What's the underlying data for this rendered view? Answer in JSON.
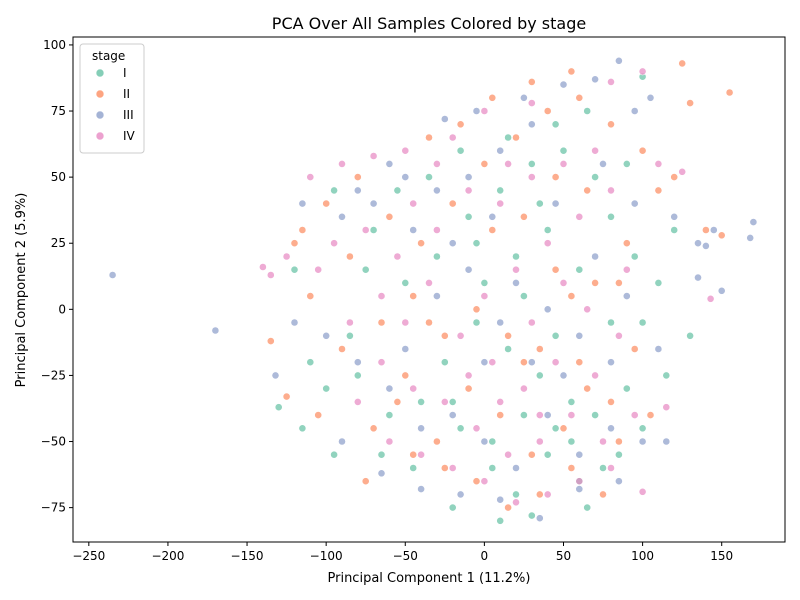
{
  "chart_data": {
    "type": "scatter",
    "title": "PCA Over All Samples Colored by stage",
    "xlabel": "Principal Component 1 (11.2%)",
    "ylabel": "Principal Component 2 (5.9%)",
    "xlim": [
      -260,
      190
    ],
    "ylim": [
      -88,
      103
    ],
    "xticks": [
      -250,
      -200,
      -150,
      -100,
      -50,
      0,
      50,
      100,
      150
    ],
    "yticks": [
      -75,
      -50,
      -25,
      0,
      25,
      50,
      75,
      100
    ],
    "grid": false,
    "legend": {
      "title": "stage",
      "placement": "top-left"
    },
    "series": [
      {
        "name": "I",
        "color": "#66c2a5",
        "points": [
          [
            -15,
            -45
          ],
          [
            5,
            -60
          ],
          [
            20,
            -70
          ],
          [
            40,
            -55
          ],
          [
            55,
            -50
          ],
          [
            60,
            -65
          ],
          [
            70,
            -40
          ],
          [
            85,
            -55
          ],
          [
            90,
            -30
          ],
          [
            100,
            -45
          ],
          [
            -40,
            -35
          ],
          [
            -60,
            -40
          ],
          [
            -80,
            -25
          ],
          [
            -100,
            -30
          ],
          [
            -110,
            -20
          ],
          [
            -120,
            15
          ],
          [
            -95,
            45
          ],
          [
            -70,
            30
          ],
          [
            -50,
            10
          ],
          [
            -30,
            20
          ],
          [
            -10,
            35
          ],
          [
            10,
            45
          ],
          [
            30,
            55
          ],
          [
            50,
            60
          ],
          [
            70,
            50
          ],
          [
            80,
            35
          ],
          [
            95,
            20
          ],
          [
            110,
            10
          ],
          [
            115,
            -25
          ],
          [
            100,
            -5
          ],
          [
            25,
            -40
          ],
          [
            35,
            -25
          ],
          [
            45,
            -10
          ],
          [
            15,
            -15
          ],
          [
            -5,
            -5
          ],
          [
            -25,
            -20
          ],
          [
            0,
            10
          ],
          [
            20,
            20
          ],
          [
            40,
            30
          ],
          [
            60,
            15
          ],
          [
            -85,
            -10
          ],
          [
            -65,
            -55
          ],
          [
            -45,
            -60
          ],
          [
            -20,
            -75
          ],
          [
            10,
            -80
          ],
          [
            30,
            -78
          ],
          [
            65,
            -75
          ],
          [
            75,
            -60
          ],
          [
            55,
            -35
          ],
          [
            5,
            -50
          ],
          [
            -55,
            45
          ],
          [
            -35,
            50
          ],
          [
            -15,
            60
          ],
          [
            15,
            65
          ],
          [
            45,
            70
          ],
          [
            65,
            75
          ],
          [
            100,
            88
          ],
          [
            -115,
            -45
          ],
          [
            -130,
            -37
          ],
          [
            -95,
            -55
          ],
          [
            120,
            30
          ],
          [
            130,
            -10
          ],
          [
            -5,
            25
          ],
          [
            25,
            5
          ],
          [
            45,
            -45
          ],
          [
            80,
            -5
          ],
          [
            90,
            55
          ],
          [
            -75,
            15
          ],
          [
            -20,
            -35
          ],
          [
            35,
            40
          ]
        ]
      },
      {
        "name": "II",
        "color": "#fc8d62",
        "points": [
          [
            -10,
            -30
          ],
          [
            10,
            -40
          ],
          [
            30,
            -55
          ],
          [
            50,
            -45
          ],
          [
            60,
            -20
          ],
          [
            80,
            -35
          ],
          [
            -30,
            -50
          ],
          [
            -50,
            -25
          ],
          [
            -70,
            -45
          ],
          [
            -90,
            -15
          ],
          [
            -110,
            5
          ],
          [
            -120,
            25
          ],
          [
            -100,
            40
          ],
          [
            -80,
            50
          ],
          [
            -60,
            35
          ],
          [
            -40,
            25
          ],
          [
            -20,
            40
          ],
          [
            0,
            55
          ],
          [
            20,
            65
          ],
          [
            40,
            75
          ],
          [
            60,
            80
          ],
          [
            80,
            70
          ],
          [
            100,
            60
          ],
          [
            120,
            50
          ],
          [
            125,
            93
          ],
          [
            155,
            82
          ],
          [
            130,
            78
          ],
          [
            110,
            45
          ],
          [
            90,
            25
          ],
          [
            70,
            10
          ],
          [
            -5,
            0
          ],
          [
            15,
            -10
          ],
          [
            35,
            -15
          ],
          [
            55,
            5
          ],
          [
            -25,
            -10
          ],
          [
            -45,
            5
          ],
          [
            -65,
            -5
          ],
          [
            -85,
            20
          ],
          [
            5,
            30
          ],
          [
            25,
            35
          ],
          [
            45,
            50
          ],
          [
            65,
            45
          ],
          [
            85,
            -50
          ],
          [
            75,
            -70
          ],
          [
            55,
            -60
          ],
          [
            35,
            -70
          ],
          [
            15,
            -75
          ],
          [
            -5,
            -65
          ],
          [
            -25,
            -60
          ],
          [
            -45,
            -55
          ],
          [
            -75,
            -65
          ],
          [
            -105,
            -40
          ],
          [
            -125,
            -33
          ],
          [
            -135,
            -12
          ],
          [
            -115,
            30
          ],
          [
            5,
            80
          ],
          [
            30,
            86
          ],
          [
            55,
            90
          ],
          [
            -35,
            65
          ],
          [
            -15,
            70
          ],
          [
            95,
            -15
          ],
          [
            105,
            -40
          ],
          [
            140,
            30
          ],
          [
            150,
            28
          ],
          [
            -55,
            -35
          ],
          [
            25,
            -20
          ],
          [
            45,
            15
          ],
          [
            -35,
            -5
          ],
          [
            65,
            -30
          ],
          [
            85,
            10
          ]
        ]
      },
      {
        "name": "III",
        "color": "#8da0cb",
        "points": [
          [
            -20,
            -40
          ],
          [
            0,
            -50
          ],
          [
            20,
            -60
          ],
          [
            40,
            -40
          ],
          [
            60,
            -55
          ],
          [
            80,
            -45
          ],
          [
            100,
            -50
          ],
          [
            115,
            -50
          ],
          [
            -40,
            -45
          ],
          [
            -60,
            -30
          ],
          [
            -80,
            -20
          ],
          [
            -100,
            -10
          ],
          [
            -120,
            -5
          ],
          [
            -115,
            40
          ],
          [
            -90,
            35
          ],
          [
            -70,
            40
          ],
          [
            -50,
            50
          ],
          [
            -30,
            45
          ],
          [
            -10,
            50
          ],
          [
            10,
            60
          ],
          [
            30,
            70
          ],
          [
            50,
            85
          ],
          [
            70,
            87
          ],
          [
            85,
            94
          ],
          [
            95,
            75
          ],
          [
            105,
            80
          ],
          [
            120,
            35
          ],
          [
            135,
            25
          ],
          [
            145,
            30
          ],
          [
            170,
            33
          ],
          [
            168,
            27
          ],
          [
            150,
            7
          ],
          [
            135,
            12
          ],
          [
            140,
            24
          ],
          [
            -235,
            13
          ],
          [
            -170,
            -8
          ],
          [
            -132,
            -25
          ],
          [
            10,
            -5
          ],
          [
            30,
            -20
          ],
          [
            50,
            -25
          ],
          [
            -10,
            15
          ],
          [
            -30,
            5
          ],
          [
            -50,
            -15
          ],
          [
            70,
            20
          ],
          [
            90,
            5
          ],
          [
            110,
            -15
          ],
          [
            -90,
            -50
          ],
          [
            -65,
            -62
          ],
          [
            -40,
            -68
          ],
          [
            -15,
            -70
          ],
          [
            10,
            -72
          ],
          [
            35,
            -79
          ],
          [
            60,
            -68
          ],
          [
            85,
            -65
          ],
          [
            -5,
            75
          ],
          [
            25,
            80
          ],
          [
            -25,
            72
          ],
          [
            -60,
            55
          ],
          [
            -80,
            45
          ],
          [
            0,
            -20
          ],
          [
            20,
            10
          ],
          [
            40,
            0
          ],
          [
            60,
            -10
          ],
          [
            80,
            -20
          ],
          [
            -20,
            25
          ],
          [
            -45,
            30
          ],
          [
            5,
            35
          ],
          [
            45,
            40
          ],
          [
            75,
            55
          ],
          [
            95,
            40
          ]
        ]
      },
      {
        "name": "IV",
        "color": "#e78ac3",
        "points": [
          [
            -25,
            -35
          ],
          [
            -5,
            -45
          ],
          [
            15,
            -55
          ],
          [
            35,
            -50
          ],
          [
            55,
            -40
          ],
          [
            75,
            -50
          ],
          [
            95,
            -40
          ],
          [
            -45,
            -30
          ],
          [
            -65,
            -20
          ],
          [
            -85,
            -5
          ],
          [
            -105,
            15
          ],
          [
            -125,
            20
          ],
          [
            -140,
            16
          ],
          [
            -135,
            13
          ],
          [
            -110,
            50
          ],
          [
            -90,
            55
          ],
          [
            -70,
            58
          ],
          [
            -50,
            60
          ],
          [
            -30,
            55
          ],
          [
            -10,
            45
          ],
          [
            10,
            40
          ],
          [
            30,
            50
          ],
          [
            50,
            55
          ],
          [
            70,
            60
          ],
          [
            80,
            86
          ],
          [
            100,
            90
          ],
          [
            110,
            55
          ],
          [
            125,
            52
          ],
          [
            143,
            4
          ],
          [
            115,
            -37
          ],
          [
            100,
            -69
          ],
          [
            80,
            -60
          ],
          [
            60,
            -65
          ],
          [
            40,
            -70
          ],
          [
            20,
            -73
          ],
          [
            0,
            -65
          ],
          [
            -20,
            -60
          ],
          [
            -40,
            -55
          ],
          [
            -60,
            -50
          ],
          [
            -80,
            -35
          ],
          [
            -15,
            -10
          ],
          [
            5,
            -20
          ],
          [
            25,
            -30
          ],
          [
            45,
            -20
          ],
          [
            65,
            0
          ],
          [
            85,
            -10
          ],
          [
            -35,
            10
          ],
          [
            -55,
            20
          ],
          [
            -75,
            30
          ],
          [
            -95,
            25
          ],
          [
            0,
            5
          ],
          [
            20,
            15
          ],
          [
            40,
            25
          ],
          [
            60,
            35
          ],
          [
            80,
            45
          ],
          [
            -20,
            65
          ],
          [
            0,
            75
          ],
          [
            30,
            78
          ],
          [
            -45,
            40
          ],
          [
            -65,
            5
          ],
          [
            -10,
            -25
          ],
          [
            10,
            -35
          ],
          [
            30,
            -5
          ],
          [
            50,
            10
          ],
          [
            70,
            -25
          ],
          [
            90,
            15
          ],
          [
            -30,
            30
          ],
          [
            -50,
            -5
          ],
          [
            15,
            55
          ],
          [
            35,
            -40
          ]
        ]
      }
    ]
  }
}
